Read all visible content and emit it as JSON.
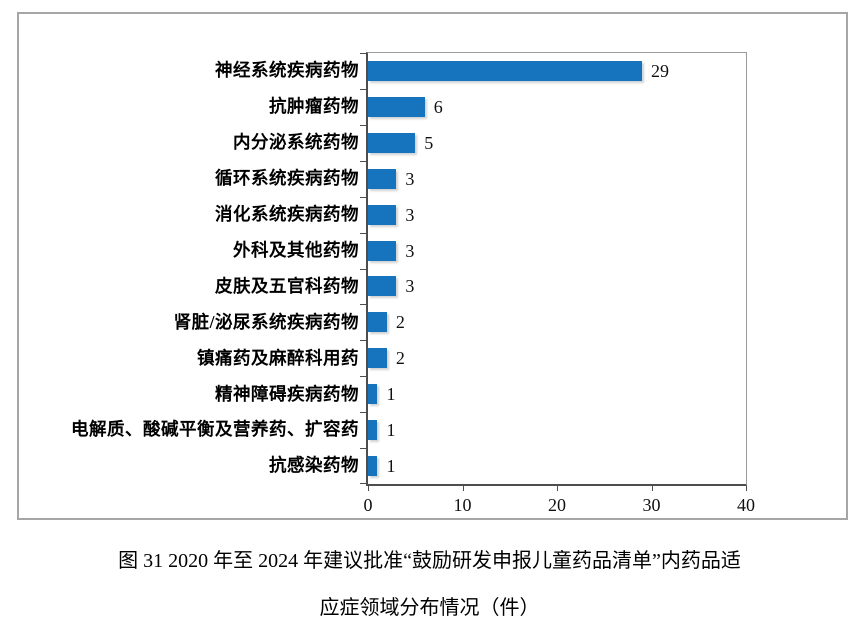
{
  "chart_data": {
    "type": "bar",
    "orientation": "horizontal",
    "title": "",
    "xlabel": "",
    "ylabel": "",
    "categories": [
      "神经系统疾病药物",
      "抗肿瘤药物",
      "内分泌系统药物",
      "循环系统疾病药物",
      "消化系统疾病药物",
      "外科及其他药物",
      "皮肤及五官科药物",
      "肾脏/泌尿系统疾病药物",
      "镇痛药及麻醉科用药",
      "精神障碍疾病药物",
      "电解质、酸碱平衡及营养药、扩容药",
      "抗感染药物"
    ],
    "values": [
      29,
      6,
      5,
      3,
      3,
      3,
      3,
      2,
      2,
      1,
      1,
      1
    ],
    "data_labels": [
      29,
      6,
      5,
      3,
      3,
      3,
      3,
      2,
      2,
      1,
      1,
      1
    ],
    "xlim": [
      0,
      40
    ],
    "x_ticks": [
      0,
      10,
      20,
      30,
      40
    ],
    "grid": false,
    "legend": false,
    "bar_color": "#1673be",
    "axis_color": "#4d4d4d",
    "box_border_color": "#a6a6a6"
  },
  "caption": {
    "line1": "图 31  2020 年至 2024 年建议批准“鼓励研发申报儿童药品清单”内药品适",
    "line2": "应症领域分布情况（件）"
  }
}
